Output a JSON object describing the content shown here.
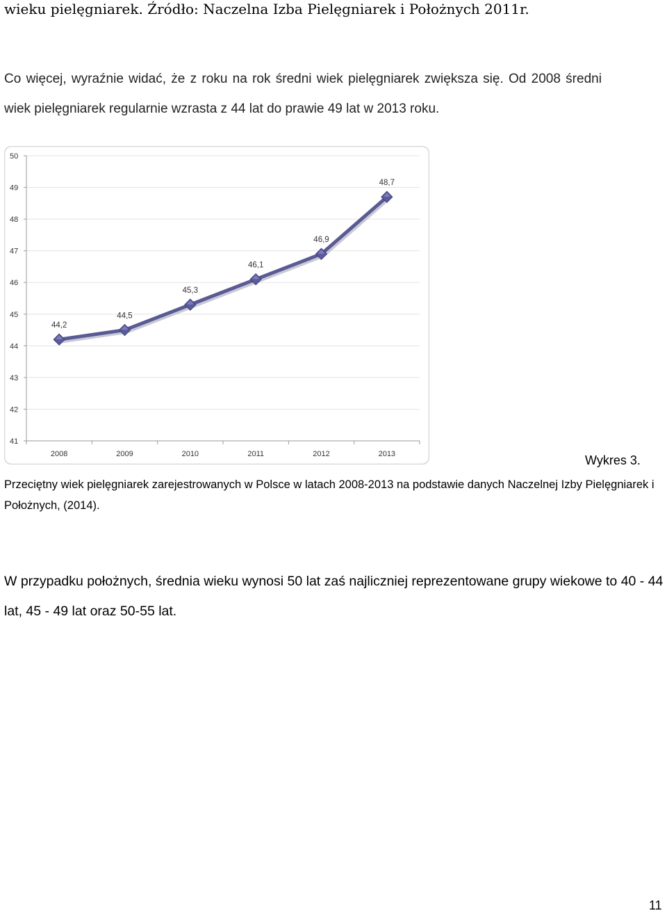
{
  "top_line": "wieku pielęgniarek. Źródło: Naczelna Izba Pielęgniarek i Położnych 2011r.",
  "paragraph1": {
    "line1": "Co więcej, wyraźnie widać, że z roku na rok średni wiek pielęgniarek zwiększa się. Od 2008 średni",
    "line2": "wiek pielęgniarek regularnie wzrasta z 44 lat do prawie 49 lat w 2013 roku."
  },
  "chart_data": {
    "type": "line",
    "categories": [
      "2008",
      "2009",
      "2010",
      "2011",
      "2012",
      "2013"
    ],
    "values": [
      44.2,
      44.5,
      45.3,
      46.1,
      46.9,
      48.7
    ],
    "data_labels": [
      "44,2",
      "44,5",
      "45,3",
      "46,1",
      "46,9",
      "48,7"
    ],
    "ylim": [
      41,
      50
    ],
    "yticks": [
      "41",
      "42",
      "43",
      "44",
      "45",
      "46",
      "47",
      "48",
      "49",
      "50"
    ],
    "grid": true,
    "legend": "none",
    "line_color": "#5a5a94",
    "marker_color": "#5b5b9e"
  },
  "caption": {
    "label": "Wykres 3.",
    "text": "Przeciętny wiek pielęgniarek zarejestrowanych w Polsce w latach 2008-2013 na podstawie danych Naczelnej Izby Pielęgniarek i Położnych, (2014)."
  },
  "paragraph2": "W przypadku położnych, średnia wieku wynosi 50 lat zaś najliczniej reprezentowane grupy wiekowe to 40 - 44 lat, 45 - 49 lat oraz 50-55 lat.",
  "page_number": "11"
}
